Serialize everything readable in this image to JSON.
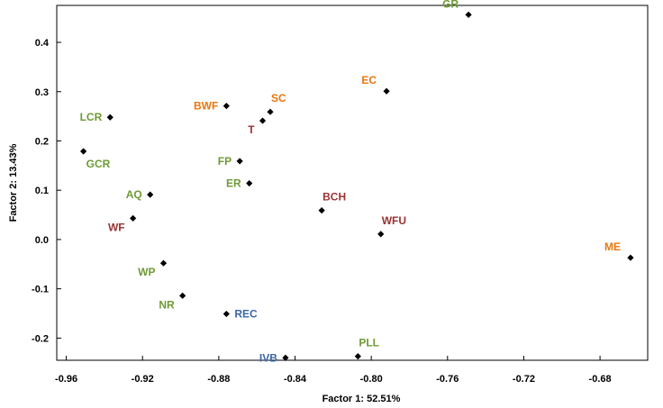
{
  "chart_data": {
    "type": "scatter",
    "xlabel": "Factor 1: 52.51%",
    "ylabel": "Factor 2: 13.43%",
    "xlim": [
      -0.965,
      -0.655
    ],
    "ylim": [
      -0.245,
      0.475
    ],
    "x_ticks": [
      -0.96,
      -0.92,
      -0.88,
      -0.84,
      -0.8,
      -0.76,
      -0.72,
      -0.68
    ],
    "x_tick_labels": [
      "-0.96",
      "-0.92",
      "-0.88",
      "-0.84",
      "-0.80",
      "-0.76",
      "-0.72",
      "-0.68"
    ],
    "y_ticks": [
      -0.2,
      -0.1,
      0.0,
      0.1,
      0.2,
      0.3,
      0.4
    ],
    "y_tick_labels": [
      "-0.2",
      "-0.1",
      "0.0",
      "0.1",
      "0.2",
      "0.3",
      "0.4"
    ],
    "grid": false,
    "marker": "diamond",
    "marker_color": "#000000",
    "colors": {
      "green": "#6f9a36",
      "orange": "#e8760d",
      "red": "#9a3233",
      "blue": "#3a68a8"
    },
    "points": [
      {
        "label": "GR",
        "x": -0.749,
        "y": 0.456,
        "color": "green",
        "label_pos": "left-top"
      },
      {
        "label": "EC",
        "x": -0.792,
        "y": 0.301,
        "color": "orange",
        "label_pos": "left-top"
      },
      {
        "label": "SC",
        "x": -0.853,
        "y": 0.259,
        "color": "orange",
        "label_pos": "right-top"
      },
      {
        "label": "BWF",
        "x": -0.876,
        "y": 0.271,
        "color": "orange",
        "label_pos": "left"
      },
      {
        "label": "LCR",
        "x": -0.937,
        "y": 0.248,
        "color": "green",
        "label_pos": "left"
      },
      {
        "label": "T",
        "x": -0.857,
        "y": 0.241,
        "color": "red",
        "label_pos": "left-bottom"
      },
      {
        "label": "GCR",
        "x": -0.951,
        "y": 0.179,
        "color": "green",
        "label_pos": "right-bottom"
      },
      {
        "label": "FP",
        "x": -0.869,
        "y": 0.159,
        "color": "green",
        "label_pos": "left"
      },
      {
        "label": "ER",
        "x": -0.864,
        "y": 0.114,
        "color": "green",
        "label_pos": "left"
      },
      {
        "label": "AQ",
        "x": -0.916,
        "y": 0.091,
        "color": "green",
        "label_pos": "left"
      },
      {
        "label": "BCH",
        "x": -0.826,
        "y": 0.059,
        "color": "red",
        "label_pos": "right-top"
      },
      {
        "label": "WF",
        "x": -0.925,
        "y": 0.043,
        "color": "red",
        "label_pos": "left-bottom"
      },
      {
        "label": "WFU",
        "x": -0.795,
        "y": 0.011,
        "color": "red",
        "label_pos": "right-top"
      },
      {
        "label": "ME",
        "x": -0.664,
        "y": -0.037,
        "color": "orange",
        "label_pos": "left-top"
      },
      {
        "label": "WP",
        "x": -0.909,
        "y": -0.048,
        "color": "green",
        "label_pos": "left-bottom"
      },
      {
        "label": "NR",
        "x": -0.899,
        "y": -0.114,
        "color": "green",
        "label_pos": "left-bottom"
      },
      {
        "label": "REC",
        "x": -0.876,
        "y": -0.151,
        "color": "blue",
        "label_pos": "right"
      },
      {
        "label": "PLL",
        "x": -0.807,
        "y": -0.237,
        "color": "green",
        "label_pos": "right-top"
      },
      {
        "label": "IVB",
        "x": -0.845,
        "y": -0.24,
        "color": "blue",
        "label_pos": "left"
      }
    ]
  }
}
